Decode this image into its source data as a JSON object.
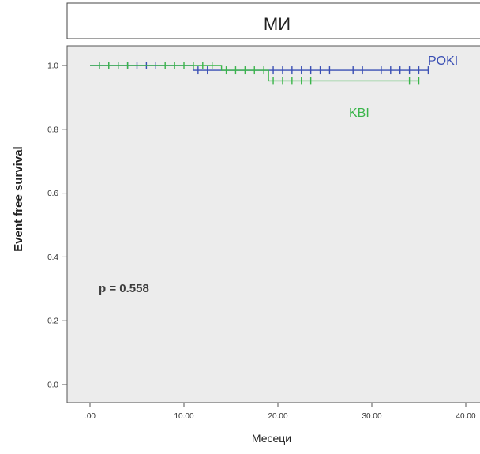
{
  "chart_data": {
    "type": "line",
    "subtype": "kaplan-meier",
    "title": "МИ",
    "xlabel": "Месеци",
    "ylabel": "Event free survival",
    "annotation": "p = 0.558",
    "xlim": [
      0,
      40
    ],
    "ylim": [
      0,
      1.0
    ],
    "x_ticks": [
      ".00",
      "10.00",
      "20.00",
      "30.00",
      "40.00"
    ],
    "x_tick_values": [
      0,
      10,
      20,
      30,
      40
    ],
    "y_ticks": [
      "0.0",
      "0.2",
      "0.4",
      "0.6",
      "0.8",
      "1.0"
    ],
    "y_tick_values": [
      0,
      0.2,
      0.4,
      0.6,
      0.8,
      1.0
    ],
    "grid": false,
    "background": "#ececec",
    "series": [
      {
        "name": "POKI",
        "color": "#3a4fb4",
        "steps": [
          [
            0,
            1.0
          ],
          [
            11.0,
            1.0
          ],
          [
            11.0,
            0.985
          ],
          [
            36.0,
            0.985
          ]
        ],
        "censored": [
          [
            1,
            1.0
          ],
          [
            2,
            1.0
          ],
          [
            3,
            1.0
          ],
          [
            4,
            1.0
          ],
          [
            5,
            1.0
          ],
          [
            6,
            1.0
          ],
          [
            7,
            1.0
          ],
          [
            11.5,
            0.985
          ],
          [
            12.5,
            0.985
          ],
          [
            19.5,
            0.985
          ],
          [
            20.5,
            0.985
          ],
          [
            21.5,
            0.985
          ],
          [
            22.5,
            0.985
          ],
          [
            23.5,
            0.985
          ],
          [
            24.5,
            0.985
          ],
          [
            25.5,
            0.985
          ],
          [
            28.0,
            0.985
          ],
          [
            29.0,
            0.985
          ],
          [
            31.0,
            0.985
          ],
          [
            32.0,
            0.985
          ],
          [
            33.0,
            0.985
          ],
          [
            34.0,
            0.985
          ],
          [
            35.0,
            0.985
          ],
          [
            36.0,
            0.985
          ]
        ]
      },
      {
        "name": "KBI",
        "color": "#3ab54a",
        "steps": [
          [
            0,
            1.0
          ],
          [
            14.0,
            1.0
          ],
          [
            14.0,
            0.985
          ],
          [
            19.0,
            0.985
          ],
          [
            19.0,
            0.952
          ],
          [
            35.0,
            0.952
          ]
        ],
        "censored": [
          [
            1,
            1.0
          ],
          [
            2,
            1.0
          ],
          [
            3,
            1.0
          ],
          [
            4,
            1.0
          ],
          [
            8,
            1.0
          ],
          [
            9,
            1.0
          ],
          [
            10,
            1.0
          ],
          [
            11,
            1.0
          ],
          [
            12,
            1.0
          ],
          [
            13,
            1.0
          ],
          [
            14.5,
            0.985
          ],
          [
            15.5,
            0.985
          ],
          [
            16.5,
            0.985
          ],
          [
            17.5,
            0.985
          ],
          [
            18.5,
            0.985
          ],
          [
            19.5,
            0.952
          ],
          [
            20.5,
            0.952
          ],
          [
            21.5,
            0.952
          ],
          [
            22.5,
            0.952
          ],
          [
            23.5,
            0.952
          ],
          [
            34.0,
            0.952
          ],
          [
            35.0,
            0.952
          ]
        ]
      }
    ]
  }
}
